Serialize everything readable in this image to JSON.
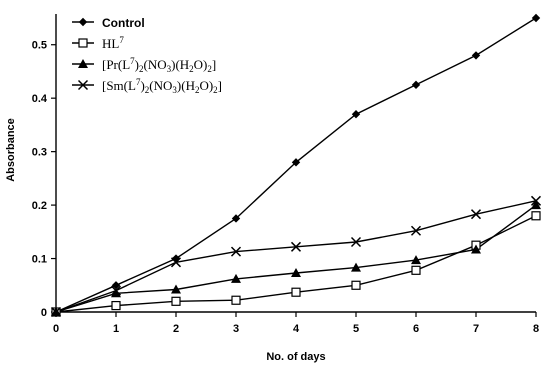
{
  "chart_data": {
    "type": "line",
    "title": "",
    "xlabel": "No. of days",
    "ylabel": "Absorbance",
    "xlim": [
      0,
      8
    ],
    "ylim": [
      0,
      0.55
    ],
    "x_ticks": [
      "0",
      "1",
      "2",
      "3",
      "4",
      "5",
      "6",
      "7",
      "8"
    ],
    "y_ticks": [
      "0",
      "0.1",
      "0.2",
      "0.3",
      "0.4",
      "0.5"
    ],
    "grid": false,
    "legend_position": "top-left",
    "x": [
      0,
      1,
      2,
      3,
      4,
      5,
      6,
      7,
      8
    ],
    "series": [
      {
        "name": "Control",
        "name_parts": [
          "Control"
        ],
        "marker": "diamond",
        "values": [
          0,
          0.05,
          0.1,
          0.175,
          0.28,
          0.37,
          0.425,
          0.48,
          0.55
        ]
      },
      {
        "name": "HL7",
        "name_parts": [
          "HL",
          "7"
        ],
        "marker": "square",
        "values": [
          0,
          0.012,
          0.02,
          0.022,
          0.037,
          0.05,
          0.078,
          0.125,
          0.18
        ]
      },
      {
        "name": "[Pr(L7)2(NO3)(H2O)2]",
        "name_parts": [
          "[Pr(L",
          "7",
          ")",
          "2",
          "(NO",
          "3",
          ")(H",
          "2",
          "O)",
          "2",
          "]"
        ],
        "marker": "triangle",
        "values": [
          0,
          0.035,
          0.042,
          0.062,
          0.073,
          0.083,
          0.097,
          0.117,
          0.2
        ]
      },
      {
        "name": "[Sm(L7)2(NO3)(H2O)2]",
        "name_parts": [
          "[Sm(L",
          "7",
          ")",
          "2",
          "(NO",
          "3",
          ")(H",
          "2",
          "O)",
          "2",
          "]"
        ],
        "marker": "x",
        "values": [
          0,
          0.04,
          0.093,
          0.113,
          0.122,
          0.131,
          0.152,
          0.183,
          0.208
        ]
      }
    ]
  }
}
